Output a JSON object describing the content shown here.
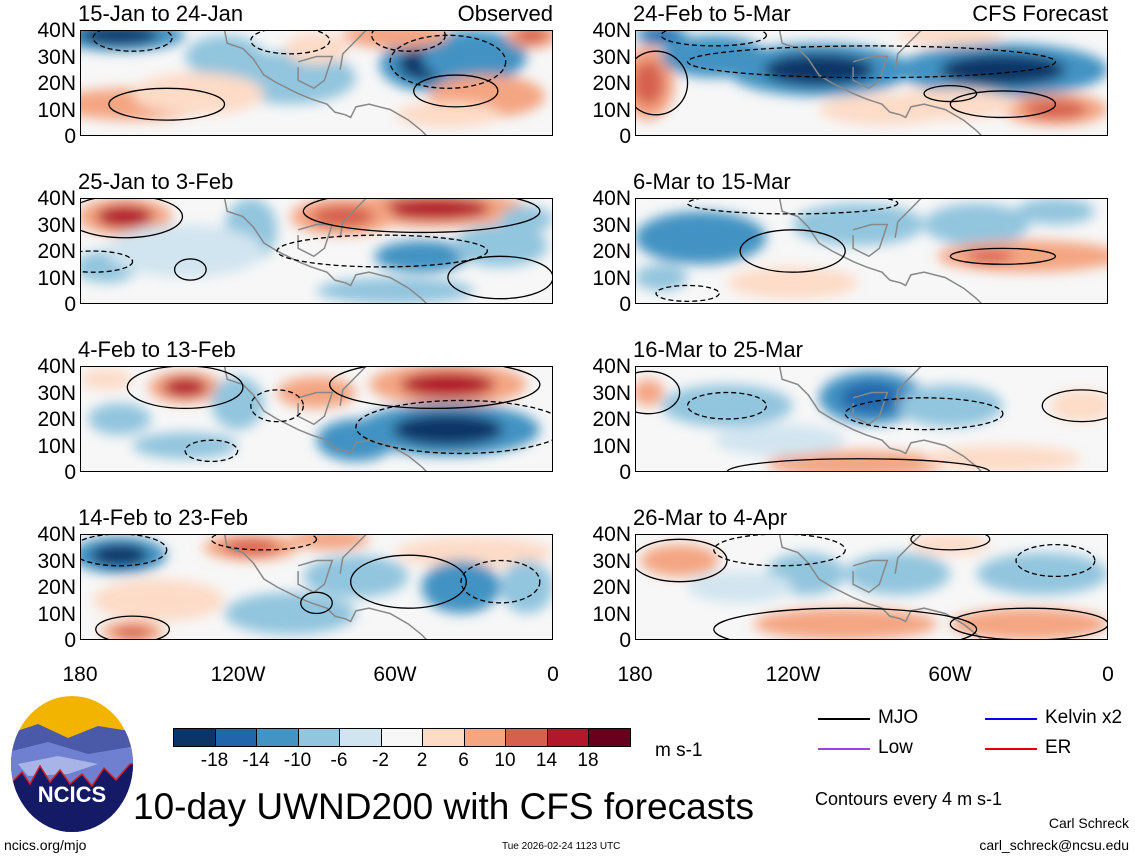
{
  "panels": [
    {
      "title": "15-Jan to 24-Jan",
      "label": "Observed",
      "col": 0,
      "row": 0,
      "blobs": [
        [
          -165,
          38,
          -18,
          25,
          6
        ],
        [
          -48,
          27,
          -18,
          18,
          10
        ],
        [
          -30,
          30,
          -10,
          20,
          10
        ],
        [
          -100,
          22,
          -6,
          25,
          10
        ],
        [
          -125,
          30,
          -6,
          15,
          8
        ],
        [
          -160,
          12,
          10,
          30,
          6
        ],
        [
          -135,
          16,
          6,
          25,
          8
        ],
        [
          -60,
          38,
          10,
          20,
          5
        ],
        [
          -25,
          15,
          10,
          22,
          8
        ],
        [
          -8,
          38,
          14,
          10,
          5
        ],
        [
          -90,
          33,
          6,
          12,
          6
        ],
        [
          -40,
          8,
          6,
          20,
          5
        ]
      ],
      "contours": [
        [
          -147,
          12,
          22,
          6,
          0
        ],
        [
          -37,
          17,
          16,
          6,
          0
        ],
        [
          -55,
          38,
          14,
          6,
          1
        ],
        [
          -160,
          37,
          15,
          5,
          1
        ],
        [
          -40,
          28,
          22,
          10,
          1
        ],
        [
          -100,
          36,
          15,
          5,
          1
        ]
      ]
    },
    {
      "title": "24-Feb to 5-Mar",
      "label": "CFS Forecast",
      "col": 1,
      "row": 0,
      "blobs": [
        [
          -175,
          20,
          14,
          10,
          14
        ],
        [
          -110,
          25,
          -18,
          35,
          10
        ],
        [
          -40,
          25,
          -18,
          40,
          10
        ],
        [
          -150,
          30,
          -10,
          20,
          8
        ],
        [
          -85,
          10,
          6,
          25,
          6
        ],
        [
          -20,
          10,
          14,
          20,
          6
        ],
        [
          -60,
          12,
          6,
          25,
          6
        ],
        [
          -170,
          38,
          -14,
          10,
          4
        ],
        [
          -60,
          38,
          6,
          20,
          4
        ]
      ],
      "contours": [
        [
          -172,
          20,
          12,
          12,
          0
        ],
        [
          -40,
          12,
          20,
          5,
          0
        ],
        [
          -60,
          16,
          10,
          3,
          0
        ],
        [
          -90,
          28,
          70,
          6,
          1
        ],
        [
          -150,
          38,
          20,
          4,
          1
        ]
      ]
    },
    {
      "title": "25-Jan to 3-Feb",
      "label": "",
      "col": 0,
      "row": 1,
      "blobs": [
        [
          -163,
          33,
          18,
          18,
          7
        ],
        [
          -45,
          36,
          18,
          35,
          7
        ],
        [
          -80,
          33,
          14,
          20,
          7
        ],
        [
          -115,
          28,
          -6,
          10,
          12
        ],
        [
          -50,
          18,
          -10,
          18,
          6
        ],
        [
          -20,
          22,
          -6,
          18,
          8
        ],
        [
          -170,
          14,
          -6,
          12,
          6
        ],
        [
          -140,
          20,
          -2,
          30,
          10
        ],
        [
          -60,
          5,
          -6,
          30,
          5
        ],
        [
          -10,
          32,
          -6,
          10,
          5
        ]
      ],
      "contours": [
        [
          -163,
          33,
          22,
          8,
          0
        ],
        [
          -50,
          35,
          45,
          8,
          0
        ],
        [
          -138,
          13,
          6,
          4,
          0
        ],
        [
          -20,
          10,
          20,
          8,
          0
        ],
        [
          -65,
          20,
          40,
          6,
          1
        ],
        [
          -175,
          16,
          15,
          4,
          1
        ]
      ]
    },
    {
      "title": "6-Mar to 15-Mar",
      "label": "",
      "col": 1,
      "row": 1,
      "blobs": [
        [
          -155,
          25,
          -10,
          25,
          10
        ],
        [
          -95,
          30,
          -6,
          25,
          8
        ],
        [
          -50,
          30,
          -6,
          20,
          8
        ],
        [
          -30,
          18,
          10,
          35,
          6
        ],
        [
          -45,
          18,
          14,
          15,
          4
        ],
        [
          -120,
          8,
          6,
          25,
          6
        ],
        [
          -20,
          35,
          -6,
          15,
          5
        ],
        [
          -170,
          10,
          -6,
          10,
          5
        ]
      ],
      "contours": [
        [
          -120,
          20,
          20,
          8,
          0
        ],
        [
          -40,
          18,
          20,
          3,
          0
        ],
        [
          -160,
          4,
          12,
          3,
          1
        ],
        [
          -120,
          38,
          40,
          4,
          1
        ]
      ]
    },
    {
      "title": "4-Feb to 13-Feb",
      "label": "",
      "col": 0,
      "row": 2,
      "blobs": [
        [
          -140,
          32,
          18,
          14,
          6
        ],
        [
          -40,
          33,
          18,
          30,
          8
        ],
        [
          -40,
          16,
          -18,
          35,
          10
        ],
        [
          -120,
          26,
          -6,
          10,
          10
        ],
        [
          -75,
          12,
          -10,
          15,
          8
        ],
        [
          -165,
          20,
          -6,
          12,
          6
        ],
        [
          -140,
          10,
          -6,
          20,
          5
        ],
        [
          -90,
          30,
          10,
          15,
          6
        ],
        [
          -170,
          35,
          6,
          10,
          4
        ]
      ],
      "contours": [
        [
          -140,
          32,
          22,
          8,
          0
        ],
        [
          -45,
          33,
          40,
          9,
          0
        ],
        [
          -35,
          17,
          40,
          10,
          1
        ],
        [
          -130,
          8,
          10,
          4,
          1
        ],
        [
          -105,
          25,
          10,
          6,
          1
        ]
      ]
    },
    {
      "title": "16-Mar to 25-Mar",
      "label": "",
      "col": 1,
      "row": 2,
      "blobs": [
        [
          -90,
          28,
          -14,
          20,
          10
        ],
        [
          -145,
          25,
          -6,
          25,
          8
        ],
        [
          -60,
          25,
          -6,
          20,
          8
        ],
        [
          -95,
          3,
          10,
          35,
          5
        ],
        [
          -40,
          5,
          6,
          30,
          5
        ],
        [
          -175,
          30,
          10,
          6,
          5
        ],
        [
          -10,
          25,
          6,
          12,
          6
        ],
        [
          -125,
          12,
          -2,
          25,
          6
        ]
      ],
      "contours": [
        [
          -175,
          30,
          12,
          8,
          0
        ],
        [
          -95,
          0,
          50,
          5,
          0
        ],
        [
          -10,
          25,
          15,
          6,
          0
        ],
        [
          -145,
          25,
          15,
          5,
          1
        ],
        [
          -70,
          22,
          30,
          6,
          1
        ]
      ]
    },
    {
      "title": "14-Feb to 23-Feb",
      "label": "",
      "col": 0,
      "row": 3,
      "blobs": [
        [
          -165,
          32,
          -18,
          18,
          7
        ],
        [
          -115,
          35,
          14,
          18,
          5
        ],
        [
          -30,
          33,
          6,
          30,
          6
        ],
        [
          -75,
          24,
          -6,
          20,
          8
        ],
        [
          -35,
          20,
          -10,
          15,
          10
        ],
        [
          -150,
          15,
          6,
          25,
          8
        ],
        [
          -160,
          3,
          14,
          12,
          4
        ],
        [
          -100,
          10,
          -6,
          25,
          8
        ],
        [
          -10,
          20,
          -6,
          10,
          10
        ],
        [
          -85,
          38,
          10,
          15,
          4
        ]
      ],
      "contours": [
        [
          -55,
          22,
          22,
          10,
          0
        ],
        [
          -160,
          4,
          14,
          5,
          0
        ],
        [
          -90,
          14,
          6,
          4,
          0
        ],
        [
          -165,
          34,
          18,
          6,
          1
        ],
        [
          -110,
          38,
          20,
          4,
          1
        ],
        [
          -20,
          22,
          15,
          8,
          1
        ]
      ]
    },
    {
      "title": "26-Mar to 4-Apr",
      "label": "",
      "col": 1,
      "row": 3,
      "blobs": [
        [
          -163,
          30,
          10,
          15,
          6
        ],
        [
          -115,
          25,
          -6,
          15,
          8
        ],
        [
          -80,
          25,
          -6,
          20,
          8
        ],
        [
          -25,
          25,
          -6,
          25,
          8
        ],
        [
          -100,
          6,
          10,
          35,
          6
        ],
        [
          -30,
          6,
          10,
          30,
          6
        ],
        [
          -140,
          20,
          -2,
          20,
          6
        ],
        [
          -60,
          36,
          6,
          15,
          4
        ]
      ],
      "contours": [
        [
          -163,
          30,
          18,
          8,
          0
        ],
        [
          -100,
          4,
          50,
          8,
          0
        ],
        [
          -30,
          6,
          30,
          6,
          0
        ],
        [
          -60,
          38,
          15,
          4,
          0
        ],
        [
          -125,
          34,
          25,
          6,
          1
        ],
        [
          -20,
          30,
          15,
          6,
          1
        ]
      ]
    }
  ],
  "lat_labels": [
    "40N",
    "30N",
    "20N",
    "10N",
    "0"
  ],
  "lon_labels": [
    "180",
    "120W",
    "60W",
    "0"
  ],
  "colorbar": {
    "colors": [
      "#0b3566",
      "#2166ac",
      "#4393c3",
      "#92c5de",
      "#d1e5f0",
      "#f7f7f7",
      "#fddbc7",
      "#f4a582",
      "#d6604d",
      "#b2182b",
      "#67001f"
    ],
    "labels": [
      "-18",
      "-14",
      "-10",
      "-6",
      "-2",
      "2",
      "6",
      "10",
      "14",
      "18"
    ],
    "units": "m s-1"
  },
  "legend": {
    "items": [
      {
        "label": "MJO",
        "color": "#000000"
      },
      {
        "label": "Kelvin x2",
        "color": "#0000ff"
      },
      {
        "label": "Low",
        "color": "#a040e0"
      },
      {
        "label": "ER",
        "color": "#e00000"
      }
    ],
    "contours_note": "Contours every 4 m s-1"
  },
  "footer": {
    "title": "10-day UWND200 with CFS forecasts",
    "logo": "NCICS",
    "site": "ncics.org/mjo",
    "timestamp": "Tue 2026-02-24 1123 UTC",
    "author": "Carl Schreck",
    "email": "carl_schreck@ncsu.edu"
  }
}
